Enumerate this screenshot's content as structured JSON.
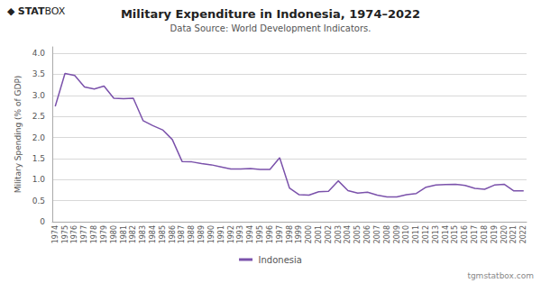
{
  "chart_data": {
    "type": "line",
    "title": "Military Expenditure in Indonesia, 1974–2022",
    "subtitle": "Data Source: World Development Indicators.",
    "ylabel": "Military Spending (% of GDP)",
    "annotations": [
      "◆",
      "STAT",
      "BOX",
      "tgmstatbox.com"
    ],
    "x": [
      1974,
      1975,
      1976,
      1977,
      1978,
      1979,
      1980,
      1981,
      1982,
      1983,
      1984,
      1985,
      1986,
      1987,
      1988,
      1989,
      1990,
      1991,
      1992,
      1993,
      1994,
      1995,
      1996,
      1997,
      1998,
      1999,
      2000,
      2001,
      2002,
      2003,
      2004,
      2005,
      2006,
      2007,
      2008,
      2009,
      2010,
      2011,
      2012,
      2013,
      2014,
      2015,
      2016,
      2017,
      2018,
      2019,
      2020,
      2021,
      2022
    ],
    "series": [
      {
        "name": "Indonesia",
        "color": "#7B52AB",
        "values": [
          2.74,
          3.52,
          3.47,
          3.2,
          3.15,
          3.22,
          2.93,
          2.92,
          2.93,
          2.4,
          2.28,
          2.18,
          1.95,
          1.43,
          1.42,
          1.38,
          1.35,
          1.3,
          1.25,
          1.25,
          1.26,
          1.24,
          1.24,
          1.52,
          0.8,
          0.64,
          0.63,
          0.71,
          0.72,
          0.97,
          0.74,
          0.68,
          0.7,
          0.63,
          0.59,
          0.59,
          0.64,
          0.67,
          0.82,
          0.87,
          0.88,
          0.89,
          0.86,
          0.79,
          0.77,
          0.87,
          0.89,
          0.73,
          0.73
        ]
      }
    ],
    "xlim": [
      1973.7,
      2022.3
    ],
    "xticks": [
      1974,
      1975,
      1976,
      1977,
      1978,
      1979,
      1980,
      1981,
      1982,
      1983,
      1984,
      1985,
      1986,
      1987,
      1988,
      1989,
      1990,
      1991,
      1992,
      1993,
      1994,
      1995,
      1996,
      1997,
      1998,
      1999,
      2000,
      2001,
      2002,
      2003,
      2004,
      2005,
      2006,
      2007,
      2008,
      2009,
      2010,
      2011,
      2012,
      2013,
      2014,
      2015,
      2016,
      2017,
      2018,
      2019,
      2020,
      2021,
      2022
    ],
    "ylim": [
      0,
      4.15
    ],
    "yticks": [
      0,
      0.5,
      {
        "value": 1.0,
        "label": "1.0"
      },
      1.5,
      {
        "value": 2.0,
        "label": "2.0"
      },
      2.5,
      {
        "value": 3.0,
        "label": "3.0"
      },
      3.5,
      {
        "value": 4.0,
        "label": "4.0"
      }
    ],
    "grid": true,
    "legend": "bottom"
  }
}
